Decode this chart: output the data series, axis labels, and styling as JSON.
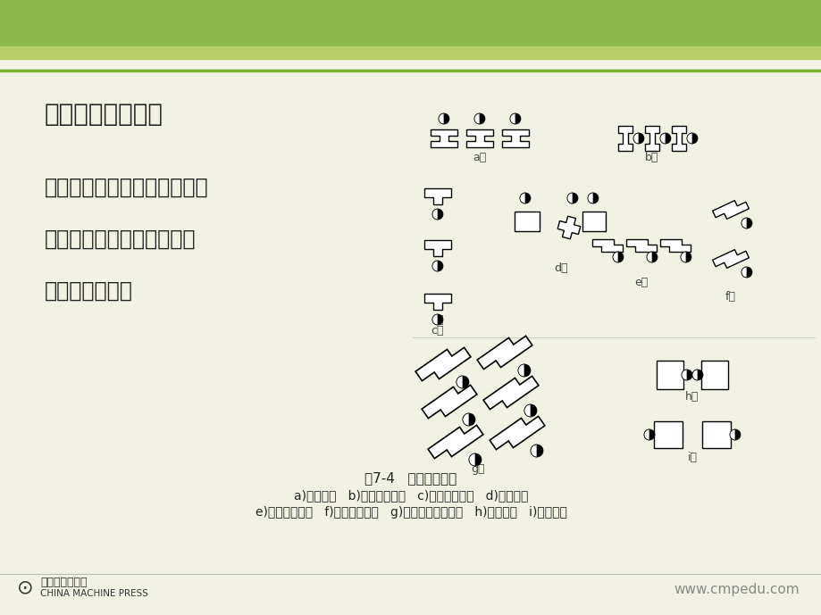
{
  "bg_color": "#f2f2e4",
  "header_dark_green": "#8ab84a",
  "header_light_green": "#b8cc6a",
  "rule_green": "#7ab030",
  "title": "三、机床排列方式",
  "body_lines": [
    "相邻机床之间按一定位置关系",
    "进行安排、布置的方式称为",
    "机床排列方式。"
  ],
  "cap1": "图7-4   机床排列方式",
  "cap2": "a)直线排列   b)横向平行排列   c)纵向平行排列   d)交错排列",
  "cap3": "e)斜向平行排列   f)斜向平行排列   g)双行斜向平行排列   h)面向排列   i)背向排列",
  "website": "www.cmpedu.com",
  "publisher1": "机械工业出版社",
  "publisher2": "CHINA MACHINE PRESS",
  "text_color": "#222222",
  "gray": "#888888"
}
